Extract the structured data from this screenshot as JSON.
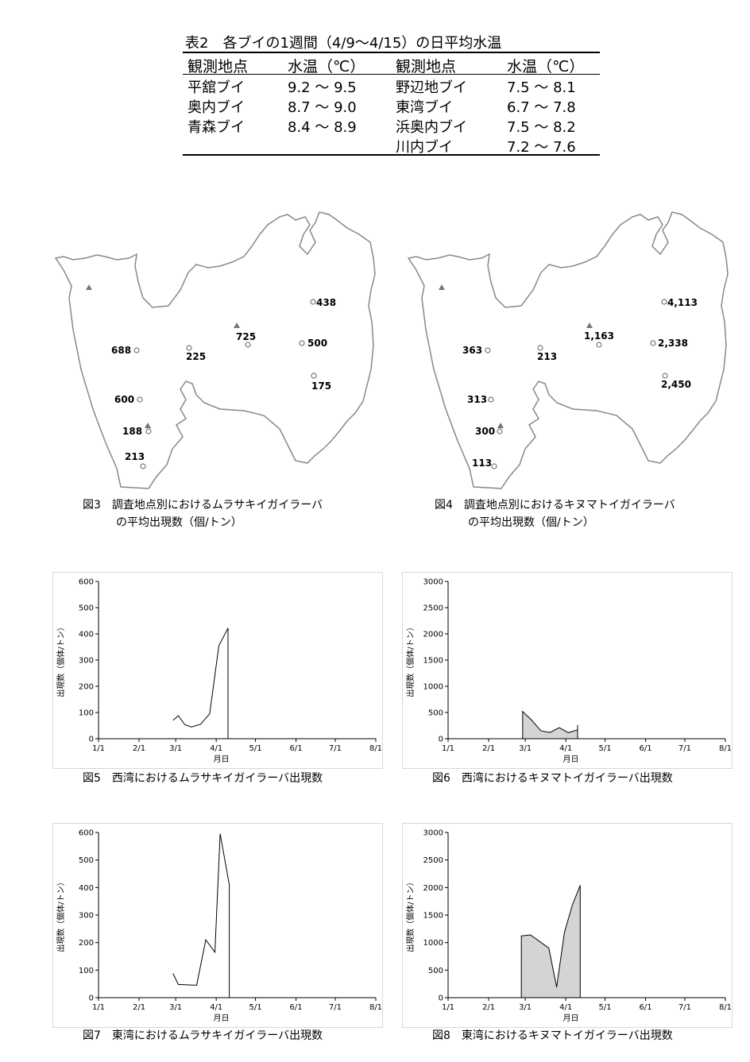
{
  "table": {
    "title": "表2　各ブイの1週間（4/9～4/15）の日平均水温",
    "headers": [
      "観測地点",
      "水温（℃）",
      "観測地点",
      "水温（℃）"
    ],
    "rows": [
      [
        "平舘ブイ",
        "9.2 ～ 9.5",
        "野辺地ブイ",
        "7.5 ～ 8.1"
      ],
      [
        "奥内ブイ",
        "8.7 ～ 9.0",
        "東湾ブイ",
        "6.7 ～ 7.8"
      ],
      [
        "青森ブイ",
        "8.4 ～ 8.9",
        "浜奥内ブイ",
        "7.5 ～ 8.2"
      ],
      [
        "",
        "",
        "川内ブイ",
        "7.2 ～ 7.6"
      ]
    ]
  },
  "maps": [
    {
      "caption_line1": "図3　調査地点別におけるムラサキイガイラーバ",
      "caption_line2": "の平均出現数（個/トン）",
      "labels": [
        "688",
        "225",
        "725",
        "438",
        "500",
        "175",
        "600",
        "188",
        "213"
      ]
    },
    {
      "caption_line1": "図4　調査地点別におけるキヌマトイガイラーバ",
      "caption_line2": "の平均出現数（個/トン）",
      "labels": [
        "363",
        "213",
        "1,163",
        "4,113",
        "2,338",
        "2,450",
        "313",
        "300",
        "113"
      ]
    }
  ],
  "chart_data": [
    {
      "type": "line",
      "caption": "図5　西湾におけるムラサキイガイラーバ出現数",
      "xlabel": "月日",
      "ylabel": "出現数（個体/トン）",
      "x_ticks": [
        "1/1",
        "2/1",
        "3/1",
        "4/1",
        "5/1",
        "6/1",
        "7/1",
        "8/1"
      ],
      "y_ticks": [
        "0",
        "100",
        "200",
        "300",
        "400",
        "500",
        "600"
      ],
      "ylim": [
        0,
        600
      ],
      "x": [
        "2/27",
        "3/3",
        "3/8",
        "3/13",
        "3/20",
        "3/27",
        "4/3",
        "4/10",
        "4/10"
      ],
      "y": [
        70,
        88,
        53,
        45,
        55,
        95,
        355,
        422,
        0
      ],
      "fill": false
    },
    {
      "type": "area",
      "caption": "図6　西湾におけるキヌマトイガイラーバ出現数",
      "xlabel": "月日",
      "ylabel": "出現数（個体/トン）",
      "x_ticks": [
        "1/1",
        "2/1",
        "3/1",
        "4/1",
        "5/1",
        "6/1",
        "7/1",
        "8/1"
      ],
      "y_ticks": [
        "0",
        "500",
        "1000",
        "1500",
        "2000",
        "2500",
        "3000"
      ],
      "ylim": [
        0,
        3000
      ],
      "x": [
        "2/27",
        "3/6",
        "3/13",
        "3/20",
        "3/27",
        "4/3",
        "4/10",
        "4/10"
      ],
      "y": [
        520,
        350,
        150,
        120,
        210,
        115,
        170,
        260
      ],
      "fill": true,
      "fill_color": "#d4d4d4"
    },
    {
      "type": "line",
      "caption": "図7　東湾におけるムラサキイガイラーバ出現数",
      "xlabel": "月日",
      "ylabel": "出現数（個体/トン）",
      "x_ticks": [
        "1/1",
        "2/1",
        "3/1",
        "4/1",
        "5/1",
        "6/1",
        "7/1",
        "8/1"
      ],
      "y_ticks": [
        "0",
        "100",
        "200",
        "300",
        "400",
        "500",
        "600"
      ],
      "ylim": [
        0,
        600
      ],
      "x": [
        "2/27",
        "3/3",
        "3/17",
        "3/24",
        "3/31",
        "4/4",
        "4/11",
        "4/11"
      ],
      "y": [
        88,
        48,
        45,
        210,
        165,
        595,
        410,
        0
      ],
      "fill": false
    },
    {
      "type": "area",
      "caption": "図8　東湾におけるキヌマトイガイラーバ出現数",
      "xlabel": "月日",
      "ylabel": "出現数（個体/トン）",
      "x_ticks": [
        "1/1",
        "2/1",
        "3/1",
        "4/1",
        "5/1",
        "6/1",
        "7/1",
        "8/1"
      ],
      "y_ticks": [
        "0",
        "500",
        "1000",
        "1500",
        "2000",
        "2500",
        "3000"
      ],
      "ylim": [
        0,
        3000
      ],
      "x": [
        "2/26",
        "3/5",
        "3/19",
        "3/25",
        "3/31",
        "4/6",
        "4/12"
      ],
      "y": [
        1120,
        1140,
        900,
        190,
        1190,
        1680,
        2040
      ],
      "fill": true,
      "fill_color": "#d4d4d4"
    }
  ]
}
